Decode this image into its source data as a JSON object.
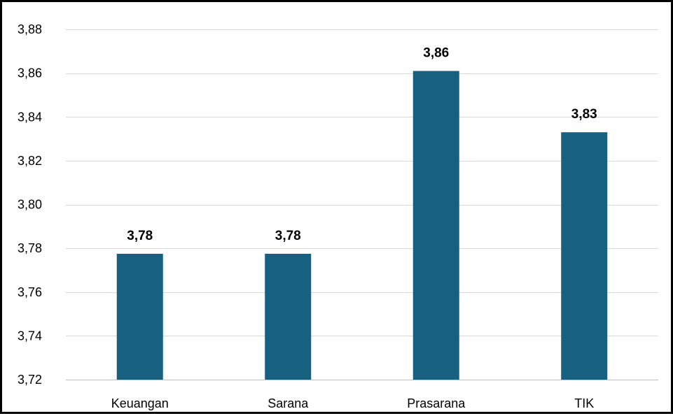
{
  "chart_data": {
    "type": "bar",
    "categories": [
      "Keuangan",
      "Sarana",
      "Prasarana",
      "TIK"
    ],
    "values": [
      3.7775,
      3.7775,
      3.861,
      3.833
    ],
    "data_labels": [
      "3,78",
      "3,78",
      "3,86",
      "3,83"
    ],
    "y_ticks": [
      3.72,
      3.74,
      3.76,
      3.78,
      3.8,
      3.82,
      3.84,
      3.86,
      3.88
    ],
    "y_tick_labels": [
      "3,72",
      "3,74",
      "3,76",
      "3,78",
      "3,80",
      "3,82",
      "3,84",
      "3,86",
      "3,88"
    ],
    "ylim": [
      3.72,
      3.88
    ],
    "grid": true,
    "legend": "none",
    "bar_color": "#17607f"
  }
}
